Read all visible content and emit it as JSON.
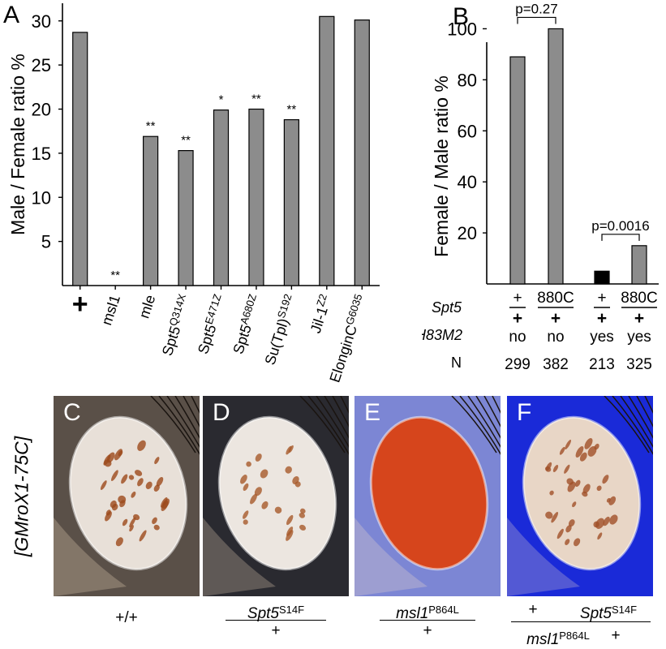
{
  "panel_labels": {
    "A": "A",
    "B": "B",
    "C": "C",
    "D": "D",
    "E": "E",
    "F": "F"
  },
  "chart_data": [
    {
      "type": "bar",
      "panel": "A",
      "ylabel": "Male / Female ratio %",
      "ylim": [
        0,
        32
      ],
      "yticks": [
        5,
        10,
        15,
        20,
        25,
        30
      ],
      "categories": [
        {
          "label": "+",
          "main": "+",
          "sup": "",
          "italic": false,
          "bold": true
        },
        {
          "label": "msl1",
          "main": "msl1",
          "sup": "",
          "italic": false,
          "bold": false
        },
        {
          "label": "mle",
          "main": "mle",
          "sup": "",
          "italic": false,
          "bold": false
        },
        {
          "label": "Spt5Q314X",
          "main": "Spt5",
          "sup": "Q314X",
          "italic": false,
          "bold": false
        },
        {
          "label": "Spt5E471Z",
          "main": "Spt5",
          "sup": "E471Z",
          "italic": false,
          "bold": false
        },
        {
          "label": "Spt5A680Z",
          "main": "Spt5",
          "sup": "A680Z",
          "italic": false,
          "bold": false
        },
        {
          "label": "Su(Tpl)S192",
          "main": "Su(Tpl)",
          "sup": "S192",
          "italic": false,
          "bold": false
        },
        {
          "label": "Jil-1Z2",
          "main": "Jil-1",
          "sup": "Z2",
          "italic": false,
          "bold": false
        },
        {
          "label": "ElonginCG6035",
          "main": "ElonginC",
          "sup": "G6035",
          "italic": false,
          "bold": false
        }
      ],
      "values": [
        28.7,
        0,
        16.9,
        15.3,
        19.9,
        20.0,
        18.8,
        30.5,
        30.1
      ],
      "significance": [
        "",
        "**",
        "**",
        "**",
        "*",
        "**",
        "**",
        "",
        ""
      ],
      "bar_color": "#8c8c8c"
    },
    {
      "type": "bar",
      "panel": "B",
      "ylabel": "Female / Male ratio %",
      "ylim": [
        0,
        110
      ],
      "yticks": [
        20,
        40,
        60,
        80,
        100
      ],
      "values": [
        89,
        100,
        5,
        15
      ],
      "bar_colors": [
        "#8c8c8c",
        "#8c8c8c",
        "#000000",
        "#8c8c8c"
      ],
      "comparisons": [
        {
          "between": [
            0,
            1
          ],
          "label": "p=0.27"
        },
        {
          "between": [
            2,
            3
          ],
          "label": "p=0.0016"
        }
      ],
      "table": {
        "spt5_label": "Spt5",
        "spt5_top": [
          "+",
          "880C",
          "+",
          "880C"
        ],
        "spt5_bottom": [
          "+",
          "+",
          "+",
          "+"
        ],
        "h83m2_label": "H83M2",
        "h83m2": [
          "no",
          "no",
          "yes",
          "yes"
        ],
        "n_label": "N",
        "n": [
          "299",
          "382",
          "213",
          "325"
        ]
      }
    }
  ],
  "photo_row": {
    "side_label": "[GMroX1-75C]",
    "photos": [
      {
        "letter": "C",
        "colors": {
          "bg": "#5a5048",
          "eye": "#e8e0d8",
          "spot": "#9c4a1c"
        }
      },
      {
        "letter": "D",
        "colors": {
          "bg": "#2a2a30",
          "eye": "#ece6e0",
          "spot": "#a85a2a"
        }
      },
      {
        "letter": "E",
        "colors": {
          "bg": "#7c86d4",
          "eye": "#d6451c",
          "spot": "#b03010"
        }
      },
      {
        "letter": "F",
        "colors": {
          "bg": "#1a2ad8",
          "eye": "#e8d6c6",
          "spot": "#a05028"
        }
      }
    ],
    "genotypes": {
      "c": "+/+",
      "d_top": "Spt5",
      "d_top_sup": "S14F",
      "d_bottom": "+",
      "e_top": "msl1",
      "e_top_sup": "P864L",
      "e_bottom": "+",
      "f_top_left": "+",
      "f_top_right": "Spt5",
      "f_top_right_sup": "S14F",
      "f_bottom_left": "msl1",
      "f_bottom_left_sup": "P864L",
      "f_bottom_right": "+"
    }
  }
}
